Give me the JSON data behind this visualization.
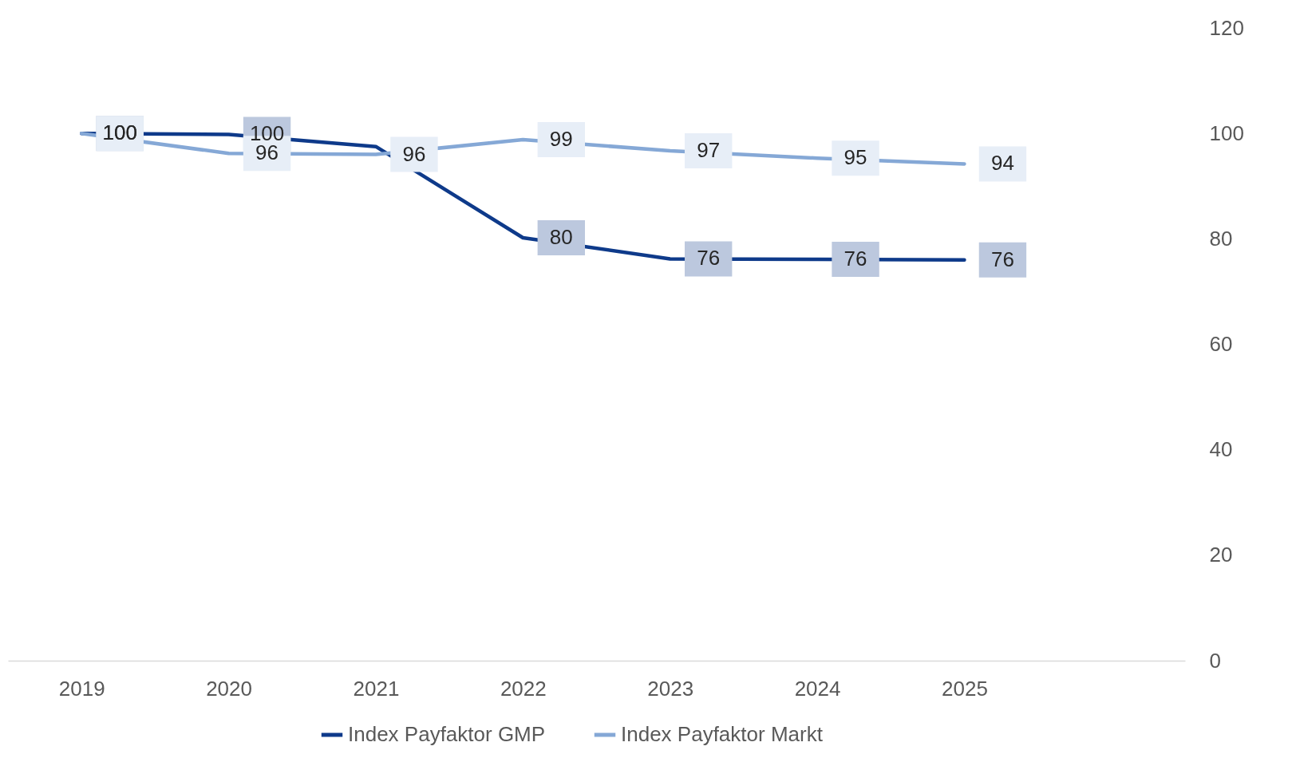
{
  "chart_data": {
    "type": "line",
    "categories": [
      "2019",
      "2020",
      "2021",
      "2022",
      "2023",
      "2024",
      "2025",
      null
    ],
    "series": [
      {
        "name": "Index Payfaktor GMP",
        "color": "#0e3a8a",
        "values": [
          100,
          99.8,
          97.5,
          80.2,
          76.2,
          76.1,
          76,
          null
        ],
        "value_labels": [
          "100",
          "100",
          null,
          "80",
          "76",
          "76",
          "76",
          null
        ]
      },
      {
        "name": "Index Payfaktor Markt",
        "color": "#85a8d6",
        "values": [
          100,
          96.2,
          96,
          98.8,
          96.7,
          95.3,
          94.2,
          null
        ],
        "value_labels": [
          "100",
          "96",
          "96",
          "99",
          "97",
          "95",
          "94",
          null
        ]
      }
    ],
    "ylim": [
      0,
      120
    ],
    "yticks": [
      0,
      20,
      40,
      60,
      80,
      100,
      120
    ],
    "grid": false,
    "legend": "bottom",
    "marker": "none",
    "line_style": "solid"
  }
}
